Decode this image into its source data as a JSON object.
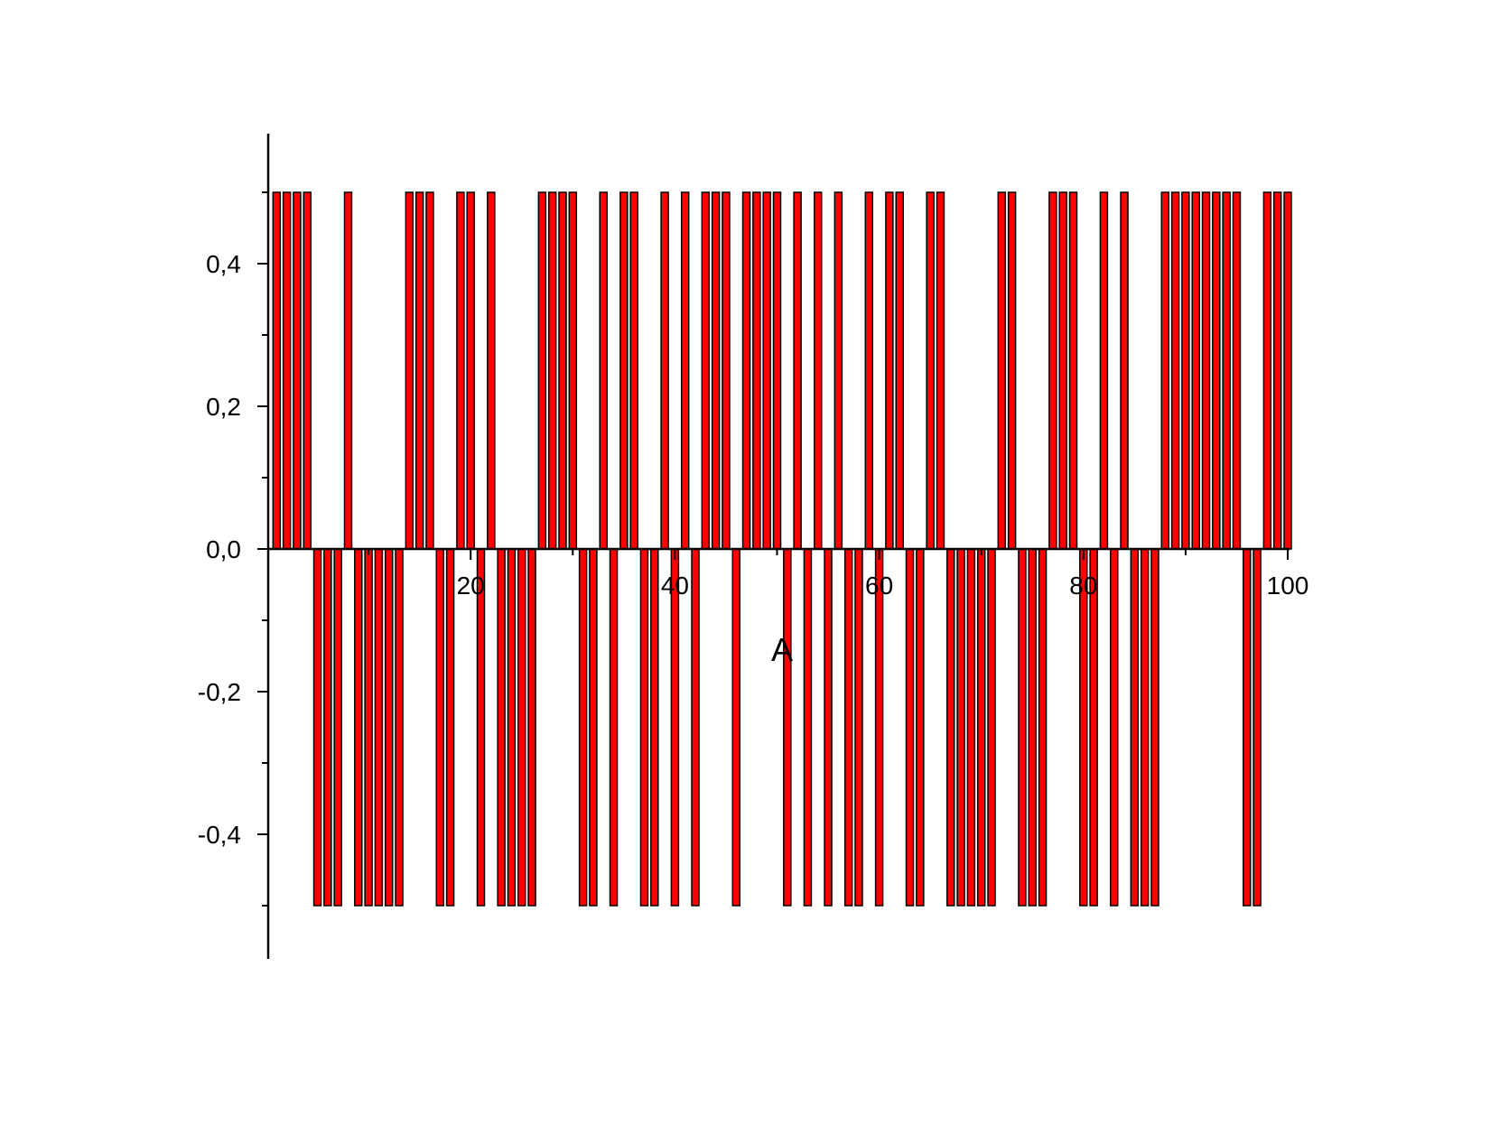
{
  "chart_data": {
    "type": "bar",
    "xlabel": "A",
    "ylabel": "",
    "title": "",
    "xlim": [
      0,
      100
    ],
    "ylim": [
      -0.55,
      0.55
    ],
    "x_ticks": [
      20,
      40,
      60,
      80,
      100
    ],
    "x_tick_labels": [
      "20",
      "40",
      "60",
      "80",
      "100"
    ],
    "y_ticks": [
      -0.4,
      -0.2,
      0.0,
      0.2,
      0.4
    ],
    "y_tick_labels": [
      "-0,4",
      "-0,2",
      "0,0",
      "0,2",
      "0,4"
    ],
    "grid": false,
    "bar_color": "#ff0000",
    "x": [
      1,
      2,
      3,
      4,
      5,
      6,
      7,
      8,
      9,
      10,
      11,
      12,
      13,
      14,
      15,
      16,
      17,
      18,
      19,
      20,
      21,
      22,
      23,
      24,
      25,
      26,
      27,
      28,
      29,
      30,
      31,
      32,
      33,
      34,
      35,
      36,
      37,
      38,
      39,
      40,
      41,
      42,
      43,
      44,
      45,
      46,
      47,
      48,
      49,
      50,
      51,
      52,
      53,
      54,
      55,
      56,
      57,
      58,
      59,
      60,
      61,
      62,
      63,
      64,
      65,
      66,
      67,
      68,
      69,
      70,
      71,
      72,
      73,
      74,
      75,
      76,
      77,
      78,
      79,
      80,
      81,
      82,
      83,
      84,
      85,
      86,
      87,
      88,
      89,
      90,
      91,
      92,
      93,
      94,
      95,
      96,
      97,
      98,
      99,
      100
    ],
    "values": [
      0.5,
      0.5,
      0.5,
      0.5,
      -0.5,
      -0.5,
      -0.5,
      0.5,
      -0.5,
      -0.5,
      -0.5,
      -0.5,
      -0.5,
      0.5,
      0.5,
      0.5,
      -0.5,
      -0.5,
      0.5,
      0.5,
      -0.5,
      0.5,
      -0.5,
      -0.5,
      -0.5,
      -0.5,
      0.5,
      0.5,
      0.5,
      0.5,
      -0.5,
      -0.5,
      0.5,
      -0.5,
      0.5,
      0.5,
      -0.5,
      -0.5,
      0.5,
      -0.5,
      0.5,
      -0.5,
      0.5,
      0.5,
      0.5,
      -0.5,
      0.5,
      0.5,
      0.5,
      0.5,
      -0.5,
      0.5,
      -0.5,
      0.5,
      -0.5,
      0.5,
      -0.5,
      -0.5,
      0.5,
      -0.5,
      0.5,
      0.5,
      -0.5,
      -0.5,
      0.5,
      0.5,
      -0.5,
      -0.5,
      -0.5,
      -0.5,
      -0.5,
      0.5,
      0.5,
      -0.5,
      -0.5,
      -0.5,
      0.5,
      0.5,
      0.5,
      -0.5,
      -0.5,
      0.5,
      -0.5,
      0.5,
      -0.5,
      -0.5,
      -0.5,
      0.5,
      0.5,
      0.5,
      0.5,
      0.5,
      0.5,
      0.5,
      0.5,
      -0.5,
      -0.5,
      0.5,
      0.5,
      0.5
    ]
  }
}
